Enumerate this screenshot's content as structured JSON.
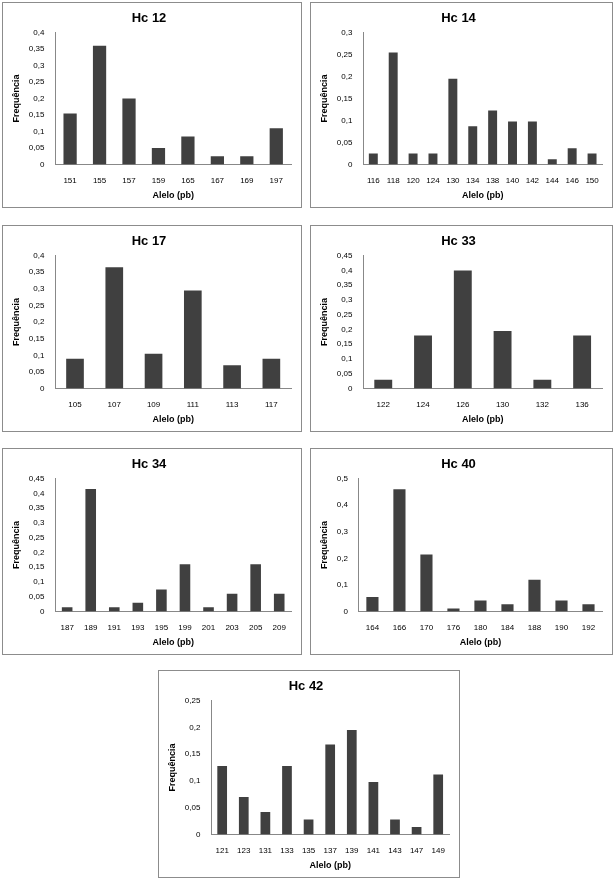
{
  "chart_data": [
    {
      "type": "bar",
      "title": "Hc 12",
      "x_label": "Alelo (pb)",
      "y_label": "Frequência",
      "categories": [
        "151",
        "155",
        "157",
        "159",
        "165",
        "167",
        "169",
        "197"
      ],
      "values": [
        0.155,
        0.36,
        0.2,
        0.05,
        0.085,
        0.025,
        0.025,
        0.11
      ],
      "color": "#404040",
      "grid": false,
      "ylim": [
        0,
        0.4
      ],
      "yticks": [
        0,
        {
          "value": 0.05,
          "label": "0,05"
        },
        {
          "value": 0.1,
          "label": "0,1"
        },
        {
          "value": 0.15,
          "label": "0,15"
        },
        {
          "value": 0.2,
          "label": "0,2"
        },
        {
          "value": 0.25,
          "label": "0,25"
        },
        {
          "value": 0.3,
          "label": "0,3"
        },
        {
          "value": 0.35,
          "label": "0,35"
        },
        {
          "value": 0.4,
          "label": "0,4"
        }
      ]
    },
    {
      "type": "bar",
      "title": "Hc 14",
      "x_label": "Alelo (pb)",
      "y_label": "Frequência",
      "categories": [
        "116",
        "118",
        "120",
        "124",
        "130",
        "134",
        "138",
        "140",
        "142",
        "144",
        "146",
        "150"
      ],
      "values": [
        0.025,
        0.255,
        0.025,
        0.025,
        0.195,
        0.087,
        0.123,
        0.098,
        0.098,
        0.012,
        0.037,
        0.025
      ],
      "color": "#404040",
      "grid": false,
      "ylim": [
        0,
        0.3
      ],
      "yticks": [
        0,
        {
          "value": 0.05,
          "label": "0,05"
        },
        {
          "value": 0.1,
          "label": "0,1"
        },
        {
          "value": 0.15,
          "label": "0,15"
        },
        {
          "value": 0.2,
          "label": "0,2"
        },
        {
          "value": 0.25,
          "label": "0,25"
        },
        {
          "value": 0.3,
          "label": "0,3"
        }
      ]
    },
    {
      "type": "bar",
      "title": "Hc 17",
      "x_label": "Alelo (pb)",
      "y_label": "Frequência",
      "categories": [
        "105",
        "107",
        "109",
        "111",
        "113",
        "117"
      ],
      "values": [
        0.09,
        0.365,
        0.105,
        0.295,
        0.07,
        0.09
      ],
      "color": "#404040",
      "grid": false,
      "ylim": [
        0,
        0.4
      ],
      "yticks": [
        0,
        {
          "value": 0.05,
          "label": "0,05"
        },
        {
          "value": 0.1,
          "label": "0,1"
        },
        {
          "value": 0.15,
          "label": "0,15"
        },
        {
          "value": 0.2,
          "label": "0,2"
        },
        {
          "value": 0.25,
          "label": "0,25"
        },
        {
          "value": 0.3,
          "label": "0,3"
        },
        {
          "value": 0.35,
          "label": "0,35"
        },
        {
          "value": 0.4,
          "label": "0,4"
        }
      ]
    },
    {
      "type": "bar",
      "title": "Hc 33",
      "x_label": "Alelo (pb)",
      "y_label": "Frequência",
      "categories": [
        "122",
        "124",
        "126",
        "130",
        "132",
        "136"
      ],
      "values": [
        0.03,
        0.18,
        0.4,
        0.195,
        0.03,
        0.18
      ],
      "color": "#404040",
      "grid": false,
      "ylim": [
        0,
        0.45
      ],
      "yticks": [
        0,
        {
          "value": 0.05,
          "label": "0,05"
        },
        {
          "value": 0.1,
          "label": "0,1"
        },
        {
          "value": 0.15,
          "label": "0,15"
        },
        {
          "value": 0.2,
          "label": "0,2"
        },
        {
          "value": 0.25,
          "label": "0,25"
        },
        {
          "value": 0.3,
          "label": "0,3"
        },
        {
          "value": 0.35,
          "label": "0,35"
        },
        {
          "value": 0.4,
          "label": "0,4"
        },
        {
          "value": 0.45,
          "label": "0,45"
        }
      ]
    },
    {
      "type": "bar",
      "title": "Hc 34",
      "x_label": "Alelo (pb)",
      "y_label": "Frequência",
      "categories": [
        "187",
        "189",
        "191",
        "193",
        "195",
        "199",
        "201",
        "203",
        "205",
        "209"
      ],
      "values": [
        0.015,
        0.415,
        0.015,
        0.03,
        0.075,
        0.16,
        0.015,
        0.06,
        0.16,
        0.06
      ],
      "color": "#404040",
      "grid": false,
      "ylim": [
        0,
        0.45
      ],
      "yticks": [
        0,
        {
          "value": 0.05,
          "label": "0,05"
        },
        {
          "value": 0.1,
          "label": "0,1"
        },
        {
          "value": 0.15,
          "label": "0,15"
        },
        {
          "value": 0.2,
          "label": "0,2"
        },
        {
          "value": 0.25,
          "label": "0,25"
        },
        {
          "value": 0.3,
          "label": "0,3"
        },
        {
          "value": 0.35,
          "label": "0,35"
        },
        {
          "value": 0.4,
          "label": "0,4"
        },
        {
          "value": 0.45,
          "label": "0,45"
        }
      ]
    },
    {
      "type": "bar",
      "title": "Hc 40",
      "x_label": "Alelo (pb)",
      "y_label": "Frequência",
      "categories": [
        "164",
        "166",
        "170",
        "176",
        "180",
        "184",
        "188",
        "190",
        "192"
      ],
      "values": [
        0.055,
        0.46,
        0.215,
        0.012,
        0.042,
        0.028,
        0.12,
        0.042,
        0.028
      ],
      "color": "#404040",
      "grid": false,
      "ylim": [
        0,
        0.5
      ],
      "yticks": [
        0,
        {
          "value": 0.1,
          "label": "0,1"
        },
        {
          "value": 0.2,
          "label": "0,2"
        },
        {
          "value": 0.3,
          "label": "0,3"
        },
        {
          "value": 0.4,
          "label": "0,4"
        },
        {
          "value": 0.5,
          "label": "0,5"
        }
      ]
    },
    {
      "type": "bar",
      "title": "Hc 42",
      "x_label": "Alelo (pb)",
      "y_label": "Frequência",
      "categories": [
        "121",
        "123",
        "131",
        "133",
        "135",
        "137",
        "139",
        "141",
        "143",
        "147",
        "149"
      ],
      "values": [
        0.128,
        0.07,
        0.042,
        0.128,
        0.028,
        0.168,
        0.195,
        0.098,
        0.028,
        0.014,
        0.112
      ],
      "color": "#404040",
      "grid": false,
      "ylim": [
        0,
        0.25
      ],
      "yticks": [
        0,
        {
          "value": 0.05,
          "label": "0,05"
        },
        {
          "value": 0.1,
          "label": "0,1"
        },
        {
          "value": 0.15,
          "label": "0,15"
        },
        {
          "value": 0.2,
          "label": "0,2"
        },
        {
          "value": 0.25,
          "label": "0,25"
        }
      ]
    }
  ]
}
